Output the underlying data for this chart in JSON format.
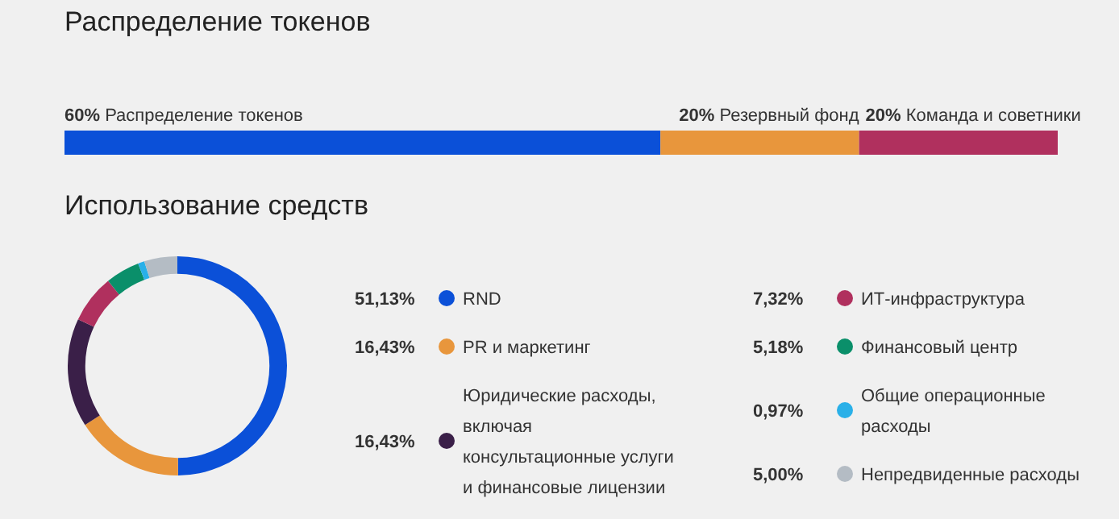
{
  "chart_data": [
    {
      "type": "bar",
      "title": "Распределение токенов",
      "orientation": "horizontal",
      "stacked": true,
      "categories": [
        null
      ],
      "series": [
        {
          "name": "Распределение токенов",
          "color": "#0b50d8",
          "values": [
            60
          ],
          "value_labels": [
            "60%"
          ]
        },
        {
          "name": "Резервный фонд",
          "color": "#e8963c",
          "values": [
            20
          ],
          "value_labels": [
            "20%"
          ]
        },
        {
          "name": "Команда и советники",
          "color": "#b0305e",
          "values": [
            20
          ],
          "value_labels": [
            "20%"
          ]
        }
      ],
      "tick_labels": false,
      "legend": false
    },
    {
      "type": "donut",
      "title": "Использование средств",
      "categories": [
        "RND",
        "PR и маркетинг",
        "Юридические расходы, включая консультационные услуги и финансовые лицензии",
        "ИТ-инфраструктура",
        "Финансовый центр",
        "Общие операционные расходы",
        "Непредвиденные расходы"
      ],
      "values": [
        51.13,
        16.43,
        16.43,
        7.32,
        5.18,
        0.97,
        5.0
      ],
      "value_labels": [
        "51,13%",
        "16,43%",
        "16,43%",
        "7,32%",
        "5,18%",
        "0,97%",
        "5,00%"
      ],
      "colors": [
        "#0b50d8",
        "#e8963c",
        "#3a1f48",
        "#b0305e",
        "#0a8f6a",
        "#2ab0e8",
        "#b4bcc4"
      ],
      "legend": "right"
    }
  ]
}
